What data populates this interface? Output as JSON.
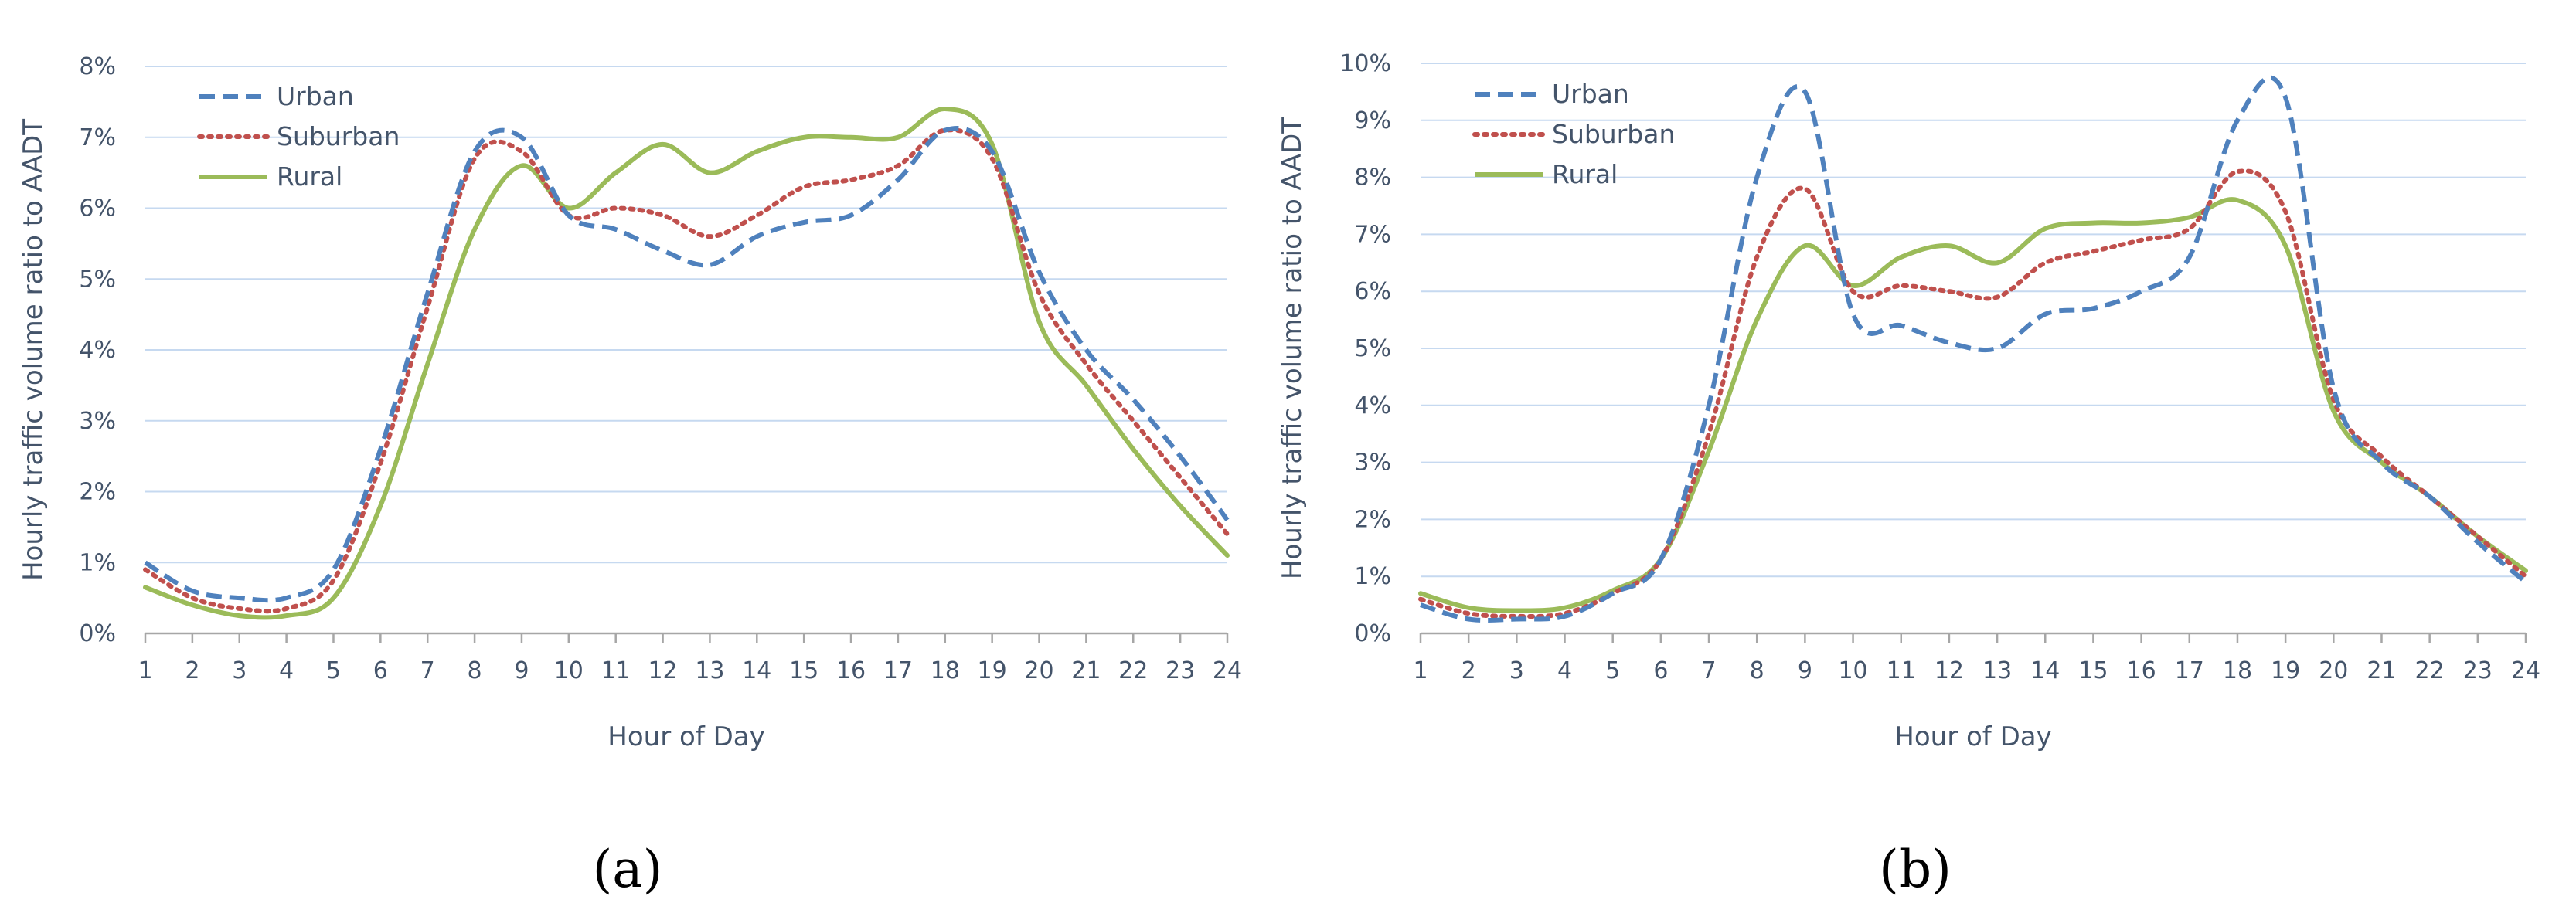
{
  "chart_data": [
    {
      "type": "line",
      "panel": "(a)",
      "xlabel": "Hour of Day",
      "ylabel": "Hourly traffic volume ratio to AADT",
      "x": [
        1,
        2,
        3,
        4,
        5,
        6,
        7,
        8,
        9,
        10,
        11,
        12,
        13,
        14,
        15,
        16,
        17,
        18,
        19,
        20,
        21,
        22,
        23,
        24
      ],
      "ylim": [
        0,
        8
      ],
      "yticks": [
        "0%",
        "1%",
        "2%",
        "3%",
        "4%",
        "5%",
        "6%",
        "7%",
        "8%"
      ],
      "grid": true,
      "legend_position": "top-left",
      "series": [
        {
          "name": "Urban",
          "color": "#4F81BD",
          "style": "dashed",
          "values": [
            1.0,
            0.6,
            0.5,
            0.5,
            0.9,
            2.6,
            4.8,
            6.8,
            7.0,
            5.9,
            5.7,
            5.4,
            5.2,
            5.6,
            5.8,
            5.9,
            6.4,
            7.1,
            6.8,
            5.1,
            4.0,
            3.3,
            2.5,
            1.6
          ]
        },
        {
          "name": "Suburban",
          "color": "#C0504D",
          "style": "dotted",
          "values": [
            0.9,
            0.5,
            0.35,
            0.35,
            0.75,
            2.4,
            4.6,
            6.7,
            6.8,
            5.9,
            6.0,
            5.9,
            5.6,
            5.9,
            6.3,
            6.4,
            6.6,
            7.1,
            6.7,
            4.8,
            3.8,
            3.0,
            2.2,
            1.4
          ]
        },
        {
          "name": "Rural",
          "color": "#9BBB59",
          "style": "solid",
          "values": [
            0.65,
            0.4,
            0.25,
            0.25,
            0.5,
            1.8,
            3.8,
            5.7,
            6.6,
            6.0,
            6.5,
            6.9,
            6.5,
            6.8,
            7.0,
            7.0,
            7.0,
            7.4,
            6.9,
            4.4,
            3.5,
            2.6,
            1.8,
            1.1
          ]
        }
      ]
    },
    {
      "type": "line",
      "panel": "(b)",
      "xlabel": "Hour of Day",
      "ylabel": "Hourly traffic volume ratio to AADT",
      "x": [
        1,
        2,
        3,
        4,
        5,
        6,
        7,
        8,
        9,
        10,
        11,
        12,
        13,
        14,
        15,
        16,
        17,
        18,
        19,
        20,
        21,
        22,
        23,
        24
      ],
      "ylim": [
        0,
        10
      ],
      "yticks": [
        "0%",
        "1%",
        "2%",
        "3%",
        "4%",
        "5%",
        "6%",
        "7%",
        "8%",
        "9%",
        "10%"
      ],
      "grid": true,
      "legend_position": "top-left",
      "series": [
        {
          "name": "Urban",
          "color": "#4F81BD",
          "style": "dashed",
          "values": [
            0.5,
            0.25,
            0.25,
            0.3,
            0.7,
            1.3,
            4.0,
            8.0,
            9.5,
            5.6,
            5.4,
            5.1,
            5.0,
            5.6,
            5.7,
            6.0,
            6.6,
            9.0,
            9.4,
            4.3,
            3.0,
            2.4,
            1.6,
            0.9
          ]
        },
        {
          "name": "Suburban",
          "color": "#C0504D",
          "style": "dotted",
          "values": [
            0.6,
            0.35,
            0.3,
            0.35,
            0.7,
            1.3,
            3.5,
            6.6,
            7.8,
            6.0,
            6.1,
            6.0,
            5.9,
            6.5,
            6.7,
            6.9,
            7.1,
            8.1,
            7.4,
            4.1,
            3.1,
            2.4,
            1.7,
            1.0
          ]
        },
        {
          "name": "Rural",
          "color": "#9BBB59",
          "style": "solid",
          "values": [
            0.7,
            0.45,
            0.4,
            0.45,
            0.75,
            1.3,
            3.2,
            5.5,
            6.8,
            6.1,
            6.6,
            6.8,
            6.5,
            7.1,
            7.2,
            7.2,
            7.3,
            7.6,
            6.8,
            3.9,
            3.0,
            2.4,
            1.7,
            1.1
          ]
        }
      ]
    }
  ],
  "captions": {
    "a": "(a)",
    "b": "(b)"
  }
}
